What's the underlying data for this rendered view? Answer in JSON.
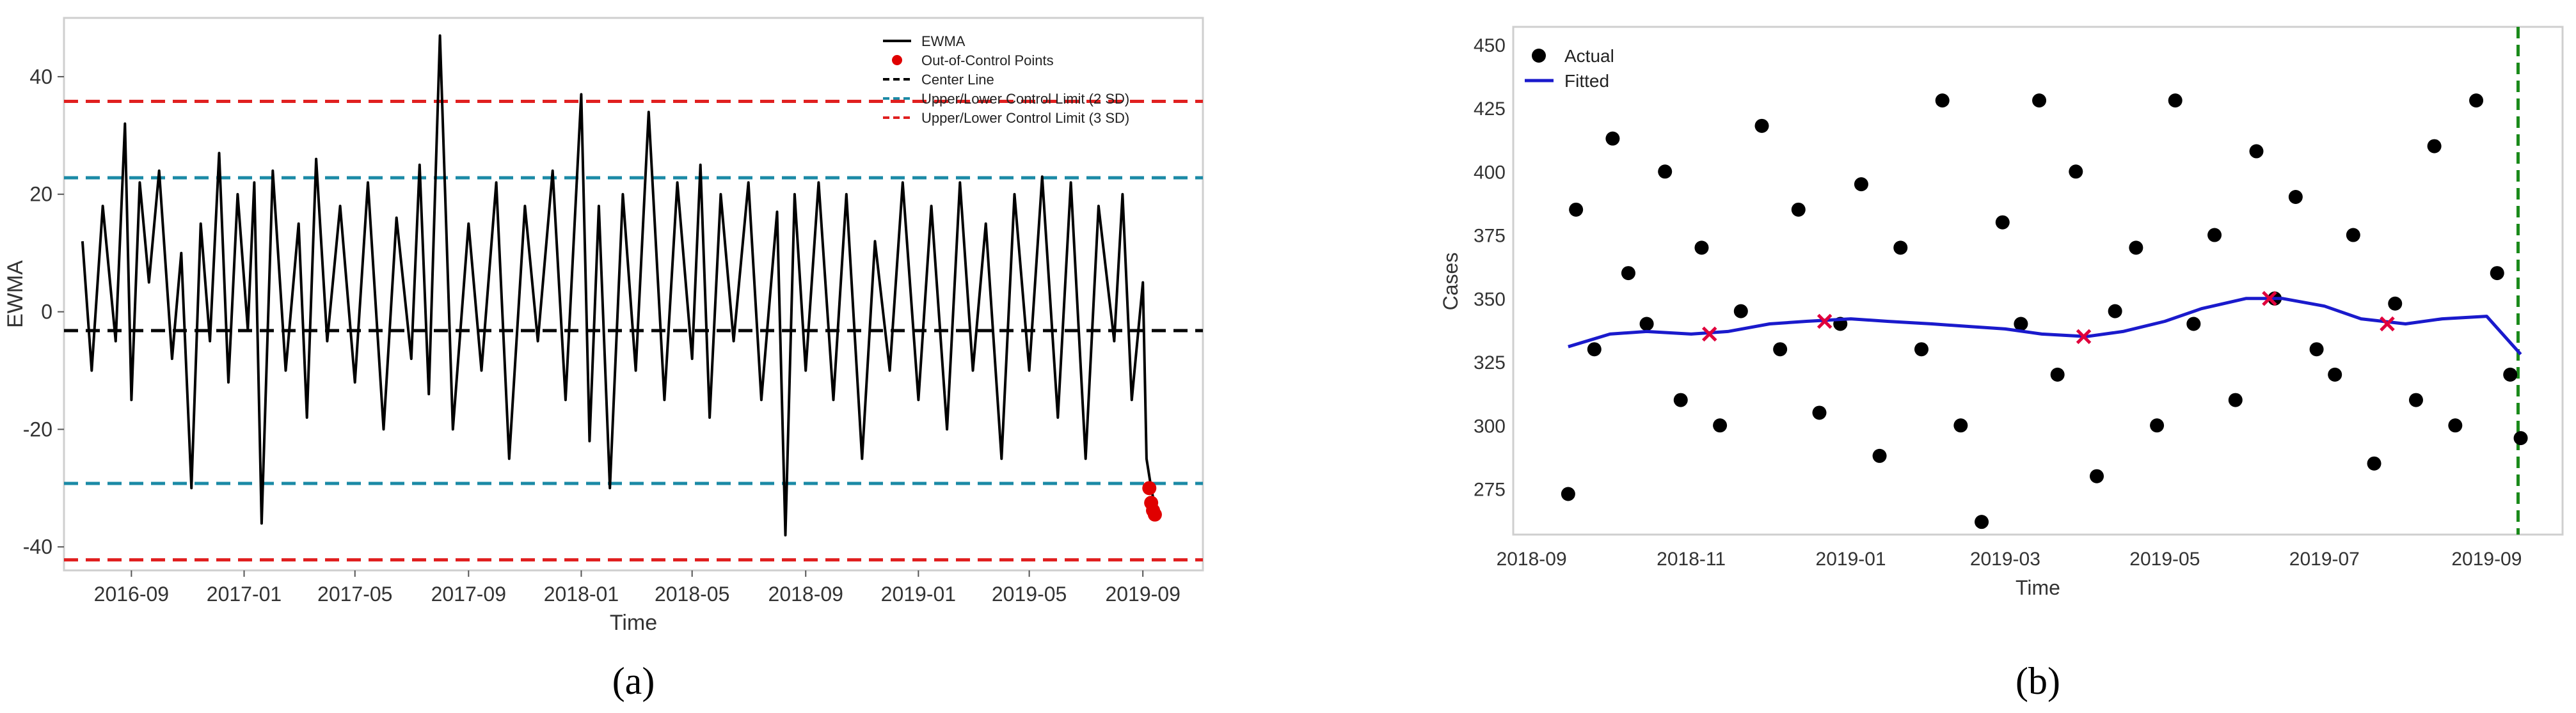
{
  "chart_data": [
    {
      "panel": "(a)",
      "type": "line",
      "title": "",
      "xlabel": "Time",
      "ylabel": "EWMA",
      "x_ticks": [
        "2016-09",
        "2017-01",
        "2017-05",
        "2017-09",
        "2018-01",
        "2018-05",
        "2018-09",
        "2019-01",
        "2019-05",
        "2019-09"
      ],
      "y_ticks": [
        -40,
        -20,
        0,
        20,
        40
      ],
      "xlim": [
        "2016-06-20",
        "2019-11-05"
      ],
      "ylim": [
        -44,
        50
      ],
      "grid": false,
      "legend_position": "top-right",
      "legend": [
        "EWMA",
        "Out-of-Control Points",
        "Center Line",
        "Upper/Lower Control Limit (2 SD)",
        "Upper/Lower Control Limit (3 SD)"
      ],
      "center_line": -3.2,
      "limits_2sd": [
        22.8,
        -29.2
      ],
      "limits_3sd": [
        35.8,
        -42.2
      ],
      "colors": {
        "ewma": "#000000",
        "center": "#000000",
        "sd2": "#1b8aa6",
        "sd3": "#e02020",
        "ooc": "#e00000"
      },
      "series": [
        {
          "name": "EWMA",
          "x": [
            "2016-07-10",
            "2016-07-20",
            "2016-08-01",
            "2016-08-15",
            "2016-08-25",
            "2016-09-01",
            "2016-09-10",
            "2016-09-20",
            "2016-10-01",
            "2016-10-15",
            "2016-10-25",
            "2016-11-05",
            "2016-11-15",
            "2016-11-25",
            "2016-12-05",
            "2016-12-15",
            "2016-12-25",
            "2017-01-05",
            "2017-01-12",
            "2017-01-20",
            "2017-02-01",
            "2017-02-15",
            "2017-03-01",
            "2017-03-10",
            "2017-03-20",
            "2017-04-01",
            "2017-04-15",
            "2017-05-01",
            "2017-05-15",
            "2017-06-01",
            "2017-06-15",
            "2017-07-01",
            "2017-07-10",
            "2017-07-20",
            "2017-08-01",
            "2017-08-15",
            "2017-09-01",
            "2017-09-15",
            "2017-10-01",
            "2017-10-15",
            "2017-11-01",
            "2017-11-15",
            "2017-12-01",
            "2017-12-15",
            "2018-01-01",
            "2018-01-10",
            "2018-01-20",
            "2018-02-01",
            "2018-02-15",
            "2018-03-01",
            "2018-03-15",
            "2018-04-01",
            "2018-04-15",
            "2018-05-01",
            "2018-05-10",
            "2018-05-20",
            "2018-06-01",
            "2018-06-15",
            "2018-07-01",
            "2018-07-15",
            "2018-08-01",
            "2018-08-10",
            "2018-08-20",
            "2018-09-01",
            "2018-09-15",
            "2018-10-01",
            "2018-10-15",
            "2018-11-01",
            "2018-11-15",
            "2018-12-01",
            "2018-12-15",
            "2019-01-01",
            "2019-01-15",
            "2019-02-01",
            "2019-02-15",
            "2019-03-01",
            "2019-03-15",
            "2019-04-01",
            "2019-04-15",
            "2019-05-01",
            "2019-05-15",
            "2019-06-01",
            "2019-06-15",
            "2019-07-01",
            "2019-07-15",
            "2019-08-01",
            "2019-08-10",
            "2019-08-20",
            "2019-09-01",
            "2019-09-05",
            "2019-09-10",
            "2019-09-15"
          ],
          "values": [
            12,
            -10,
            18,
            -5,
            32,
            -15,
            22,
            5,
            24,
            -8,
            10,
            -30,
            15,
            -5,
            27,
            -12,
            20,
            -3,
            22,
            -36,
            24,
            -10,
            15,
            -18,
            26,
            -5,
            18,
            -12,
            22,
            -20,
            16,
            -8,
            25,
            -14,
            47,
            -20,
            15,
            -10,
            22,
            -25,
            18,
            -5,
            24,
            -15,
            37,
            -22,
            18,
            -30,
            20,
            -10,
            34,
            -15,
            22,
            -8,
            25,
            -18,
            20,
            -5,
            22,
            -15,
            17,
            -38,
            20,
            -10,
            22,
            -15,
            20,
            -25,
            12,
            -10,
            22,
            -15,
            18,
            -20,
            22,
            -10,
            15,
            -25,
            20,
            -10,
            23,
            -18,
            22,
            -25,
            18,
            -5,
            20,
            -15,
            5,
            -25,
            -30,
            -34
          ]
        }
      ],
      "out_of_control": {
        "x": [
          "2019-09-08",
          "2019-09-10",
          "2019-09-12",
          "2019-09-14"
        ],
        "values": [
          -30,
          -32.5,
          -33.8,
          -34.5
        ]
      }
    },
    {
      "panel": "(b)",
      "type": "scatter",
      "title": "",
      "xlabel": "Time",
      "ylabel": "Cases",
      "x_ticks": [
        "2018-09",
        "2018-11",
        "2019-01",
        "2019-03",
        "2019-05",
        "2019-07",
        "2019-09"
      ],
      "y_ticks": [
        275,
        300,
        325,
        350,
        375,
        400,
        425,
        450
      ],
      "xlim": [
        "2018-08-25",
        "2019-09-30"
      ],
      "ylim": [
        257,
        457
      ],
      "grid": false,
      "legend_position": "top-left",
      "legend": [
        "Actual",
        "Fitted"
      ],
      "vline_date": "2019-09-13",
      "colors": {
        "actual": "#000000",
        "fitted": "#1a1acc",
        "marker": "#e0003c",
        "vline": "#1a8a1a"
      },
      "series": [
        {
          "name": "Actual",
          "x": [
            "2018-09-15",
            "2018-09-18",
            "2018-09-25",
            "2018-10-02",
            "2018-10-08",
            "2018-10-15",
            "2018-10-22",
            "2018-10-28",
            "2018-11-05",
            "2018-11-12",
            "2018-11-20",
            "2018-11-28",
            "2018-12-05",
            "2018-12-12",
            "2018-12-20",
            "2018-12-28",
            "2019-01-05",
            "2019-01-12",
            "2019-01-20",
            "2019-01-28",
            "2019-02-05",
            "2019-02-12",
            "2019-02-20",
            "2019-02-28",
            "2019-03-07",
            "2019-03-14",
            "2019-03-21",
            "2019-03-28",
            "2019-04-05",
            "2019-04-12",
            "2019-04-20",
            "2019-04-28",
            "2019-05-05",
            "2019-05-12",
            "2019-05-20",
            "2019-05-28",
            "2019-06-05",
            "2019-06-12",
            "2019-06-20",
            "2019-06-28",
            "2019-07-05",
            "2019-07-12",
            "2019-07-20",
            "2019-07-28",
            "2019-08-05",
            "2019-08-12",
            "2019-08-20",
            "2019-08-28",
            "2019-09-05",
            "2019-09-10",
            "2019-09-14"
          ],
          "values": [
            273,
            385,
            330,
            413,
            360,
            340,
            400,
            310,
            370,
            300,
            345,
            418,
            330,
            385,
            305,
            340,
            395,
            288,
            370,
            330,
            428,
            300,
            262,
            380,
            340,
            428,
            320,
            400,
            280,
            345,
            370,
            300,
            428,
            340,
            375,
            310,
            408,
            350,
            390,
            330,
            320,
            375,
            285,
            348,
            310,
            410,
            300,
            428,
            360,
            320,
            295
          ]
        },
        {
          "name": "Fitted",
          "x": [
            "2018-09-15",
            "2018-10-01",
            "2018-10-15",
            "2018-11-01",
            "2018-11-15",
            "2018-12-01",
            "2018-12-15",
            "2019-01-01",
            "2019-01-15",
            "2019-02-01",
            "2019-02-15",
            "2019-03-01",
            "2019-03-15",
            "2019-04-01",
            "2019-04-15",
            "2019-05-01",
            "2019-05-15",
            "2019-06-01",
            "2019-06-15",
            "2019-07-01",
            "2019-07-15",
            "2019-08-01",
            "2019-08-15",
            "2019-09-01",
            "2019-09-14"
          ],
          "values": [
            331,
            336,
            337,
            336,
            337,
            340,
            341,
            342,
            341,
            340,
            339,
            338,
            336,
            335,
            337,
            341,
            346,
            350,
            350,
            347,
            342,
            340,
            342,
            343,
            328
          ]
        }
      ],
      "fitted_markers": {
        "x": [
          "2018-11-08",
          "2018-12-22",
          "2019-03-31",
          "2019-06-10",
          "2019-07-25"
        ],
        "values": [
          336,
          341,
          335,
          350,
          340
        ]
      }
    }
  ]
}
